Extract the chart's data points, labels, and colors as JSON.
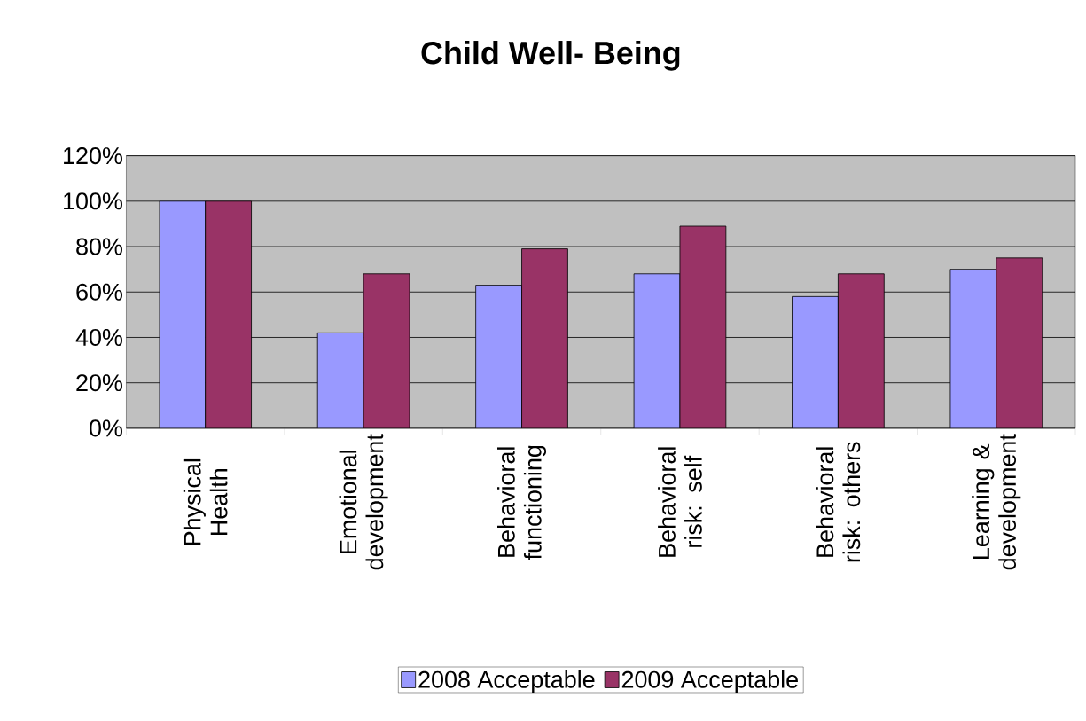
{
  "chart_data": {
    "type": "bar",
    "title": "Child Well- Being",
    "categories": [
      "Physical Health",
      "Emotional development",
      "Behavioral functioning",
      "Behavioral risk: self",
      "Behavioral risk: others",
      "Learning & development"
    ],
    "series": [
      {
        "name": "2008 Acceptable",
        "color": "#9999ff",
        "values": [
          100,
          42,
          63,
          68,
          58,
          70
        ]
      },
      {
        "name": "2009 Acceptable",
        "color": "#993366",
        "values": [
          100,
          68,
          79,
          89,
          68,
          75
        ]
      }
    ],
    "ylim": [
      0,
      120
    ],
    "yticks": [
      {
        "value": 0,
        "label": "0%"
      },
      {
        "value": 20,
        "label": "20%"
      },
      {
        "value": 40,
        "label": "40%"
      },
      {
        "value": 60,
        "label": "60%"
      },
      {
        "value": 80,
        "label": "80%"
      },
      {
        "value": 100,
        "label": "100%"
      },
      {
        "value": 120,
        "label": "120%"
      }
    ],
    "grid": "y",
    "legend": "bottom"
  }
}
